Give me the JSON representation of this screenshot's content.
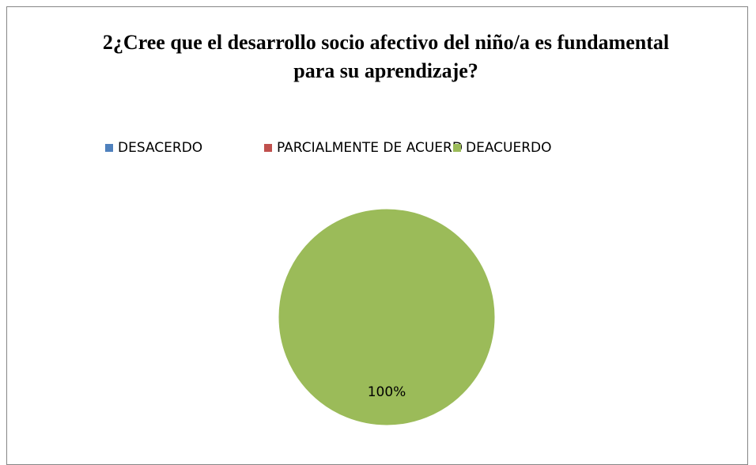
{
  "chart_data": {
    "type": "pie",
    "title": "2¿Cree que  el desarrollo socio afectivo del niño/a es fundamental para su aprendizaje?",
    "categories": [
      "DESACERDO",
      "PARCIALMENTE DE ACUERD",
      "DEACUERDO"
    ],
    "values": [
      0,
      0,
      100
    ],
    "value_labels": [
      null,
      null,
      "100%"
    ],
    "colors": [
      "#4f81bd",
      "#c0504d",
      "#9bbb59"
    ],
    "legend": "top"
  }
}
